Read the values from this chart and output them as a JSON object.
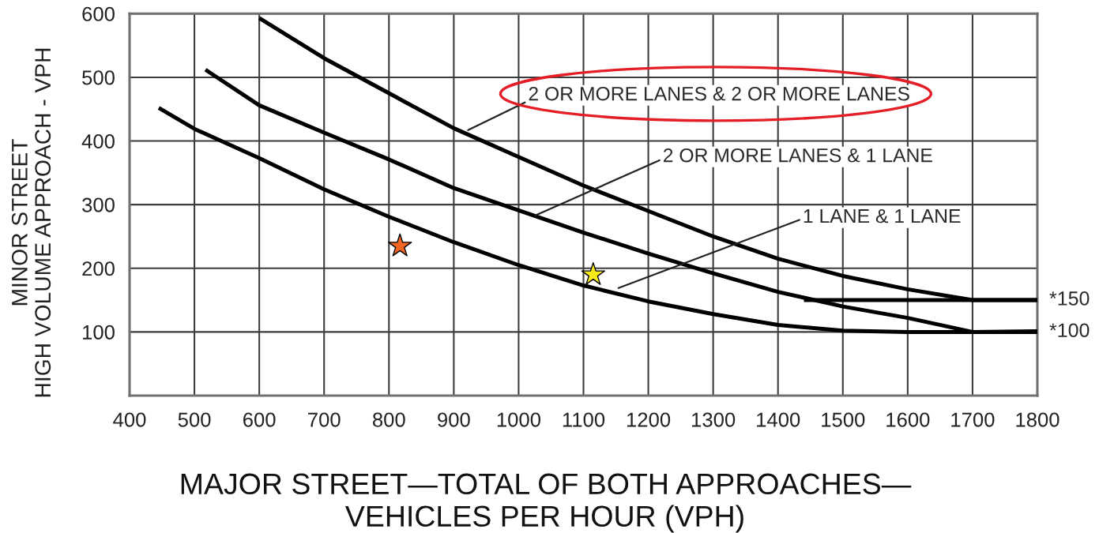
{
  "chart_data": {
    "type": "line",
    "xlabel": "MAJOR STREET—TOTAL OF BOTH APPROACHES—\nVEHICLES PER HOUR (VPH)",
    "ylabel": "MINOR STREET\nHIGH VOLUME APPROACH - VPH",
    "xlim": [
      400,
      1800
    ],
    "xticks": [
      400,
      500,
      600,
      700,
      800,
      900,
      1000,
      1100,
      1200,
      1300,
      1400,
      1500,
      1600,
      1700,
      1800
    ],
    "ylim": [
      0,
      600
    ],
    "yticks": [
      100,
      200,
      300,
      400,
      500,
      600
    ],
    "grid": true,
    "line_style": "solid",
    "series": [
      {
        "color": "#000000",
        "x": [
          600,
          700,
          800,
          900,
          1000,
          1100,
          1200,
          1300,
          1400,
          1500,
          1600,
          1700,
          1800
        ],
        "values": [
          593,
          530,
          475,
          420,
          375,
          330,
          290,
          250,
          215,
          188,
          167,
          150,
          150
        ]
      },
      {
        "color": "#000000",
        "x": [
          517,
          600,
          700,
          800,
          900,
          1000,
          1100,
          1200,
          1300,
          1400,
          1500,
          1600,
          1700,
          1800
        ],
        "values": [
          512,
          456,
          413,
          371,
          326,
          291,
          256,
          223,
          192,
          163,
          140,
          122,
          100,
          100
        ]
      },
      {
        "color": "#000000",
        "x": [
          445,
          500,
          600,
          700,
          800,
          900,
          1000,
          1100,
          1200,
          1300,
          1400,
          1500,
          1600,
          1700,
          1800
        ],
        "values": [
          452,
          419,
          373,
          324,
          281,
          241,
          205,
          173,
          148,
          128,
          111,
          102,
          100,
          100,
          101
        ]
      },
      {
        "color": "#000000",
        "x": [
          1440,
          1800
        ],
        "values": [
          150,
          150
        ]
      },
      {
        "type": "scatter",
        "marker": "star",
        "x": [
          817,
          1115
        ],
        "values": [
          235,
          190
        ],
        "colors": [
          "#f26522",
          "#f7ea1a"
        ]
      }
    ],
    "annotations": [
      {
        "text": "2 OR MORE LANES & 2 OR MORE LANES",
        "x": 922,
        "y": 417
      },
      {
        "text": "2 OR MORE LANES & 1 LANE",
        "x": 1026,
        "y": 283
      },
      {
        "text": "1 LANE & 1 LANE",
        "x": 1154,
        "y": 169
      },
      {
        "text": "*150",
        "x": 1800,
        "y": 150
      },
      {
        "text": "*100",
        "x": 1800,
        "y": 100
      }
    ]
  }
}
